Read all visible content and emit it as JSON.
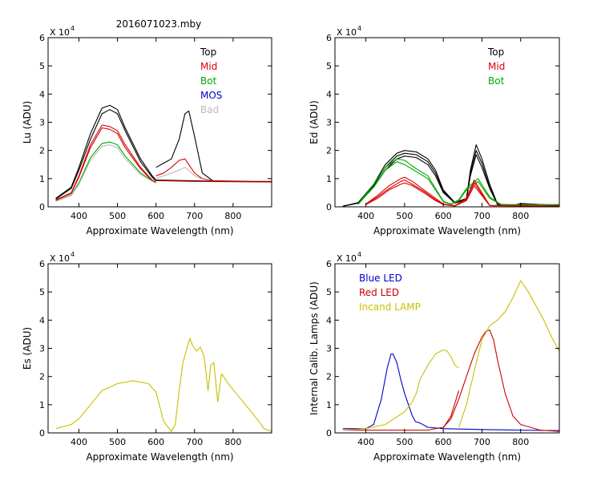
{
  "figure_title": "2016071023.mby",
  "chart_data": [
    {
      "type": "line",
      "xlabel": "Approximate Wavelength (nm)",
      "ylabel": "Lu (ADU)",
      "y_scale_label": "X 10",
      "y_scale_exp": "4",
      "xlim": [
        320,
        900
      ],
      "ylim": [
        0,
        60000
      ],
      "xticks": [
        400,
        500,
        600,
        700,
        800
      ],
      "yticks": [
        0,
        10000,
        20000,
        30000,
        40000,
        50000,
        60000
      ],
      "yticklabels": [
        "0",
        "1",
        "2",
        "3",
        "4",
        "5",
        "6"
      ],
      "legend_position": "top-right",
      "legend": [
        {
          "label": "Top",
          "color": "#000000"
        },
        {
          "label": "Mid",
          "color": "#dd0000"
        },
        {
          "label": "Bot",
          "color": "#00aa00"
        },
        {
          "label": "MOS",
          "color": "#0000cc"
        },
        {
          "label": "Bad",
          "color": "#bbbbbb"
        }
      ],
      "series": [
        {
          "color": "#000000",
          "x": [
            340,
            380,
            400,
            430,
            460,
            480,
            500,
            520,
            560,
            590,
            600
          ],
          "y": [
            3000,
            7000,
            14000,
            26000,
            35000,
            36000,
            34500,
            28000,
            17000,
            11000,
            9500
          ]
        },
        {
          "color": "#000000",
          "x": [
            340,
            380,
            400,
            430,
            460,
            480,
            500,
            520,
            560,
            590,
            600
          ],
          "y": [
            2800,
            6500,
            13000,
            24000,
            33000,
            34500,
            33000,
            27000,
            16000,
            10500,
            9200
          ]
        },
        {
          "color": "#dd0000",
          "x": [
            340,
            380,
            400,
            430,
            460,
            480,
            500,
            520,
            560,
            590,
            600
          ],
          "y": [
            2500,
            5000,
            11000,
            22000,
            29000,
            28500,
            27000,
            22000,
            14000,
            9500,
            8800
          ]
        },
        {
          "color": "#dd0000",
          "x": [
            340,
            380,
            400,
            430,
            460,
            480,
            500,
            520,
            560,
            590,
            600
          ],
          "y": [
            2300,
            4800,
            10500,
            21000,
            28000,
            27500,
            26000,
            21000,
            13500,
            9200,
            8600
          ]
        },
        {
          "color": "#00aa00",
          "x": [
            340,
            380,
            400,
            430,
            460,
            480,
            500,
            520,
            560,
            590,
            600
          ],
          "y": [
            2000,
            4200,
            8500,
            17500,
            22500,
            23000,
            22000,
            18000,
            12000,
            9200,
            8500
          ]
        },
        {
          "color": "#bbbbbb",
          "x": [
            340,
            380,
            400,
            430,
            460,
            480,
            500,
            520,
            560,
            590,
            600
          ],
          "y": [
            1900,
            4000,
            8000,
            16500,
            21500,
            22000,
            21000,
            17000,
            11500,
            9000,
            8400
          ]
        },
        {
          "color": "#000000",
          "x": [
            600,
            620,
            640,
            660,
            675,
            685,
            700,
            720,
            750,
            900
          ],
          "y": [
            14000,
            15500,
            17000,
            24000,
            33000,
            34000,
            25000,
            12000,
            9000,
            9000
          ]
        },
        {
          "color": "#dd0000",
          "x": [
            600,
            620,
            640,
            660,
            675,
            685,
            700,
            720,
            750,
            900
          ],
          "y": [
            11000,
            12000,
            14000,
            16500,
            17000,
            15000,
            12000,
            10000,
            9200,
            9000
          ]
        },
        {
          "color": "#bbbbbb",
          "x": [
            600,
            620,
            640,
            660,
            675,
            685,
            700,
            720,
            750,
            900
          ],
          "y": [
            10000,
            11000,
            12000,
            13000,
            14000,
            13000,
            11000,
            9800,
            9100,
            9000
          ]
        },
        {
          "color": "#000000",
          "x": [
            600,
            700,
            800,
            900
          ],
          "y": [
            9500,
            9200,
            9000,
            8900
          ]
        },
        {
          "color": "#dd0000",
          "x": [
            600,
            700,
            800,
            900
          ],
          "y": [
            9300,
            9000,
            8900,
            8800
          ]
        }
      ]
    },
    {
      "type": "line",
      "xlabel": "Approximate Wavelength (nm)",
      "ylabel": "Ed (ADU)",
      "y_scale_label": "X 10",
      "y_scale_exp": "4",
      "xlim": [
        320,
        900
      ],
      "ylim": [
        0,
        60000
      ],
      "xticks": [
        400,
        500,
        600,
        700,
        800
      ],
      "yticks": [
        0,
        10000,
        20000,
        30000,
        40000,
        50000,
        60000
      ],
      "yticklabels": [
        "0",
        "1",
        "2",
        "3",
        "4",
        "5",
        "6"
      ],
      "legend_position": "top-right",
      "legend": [
        {
          "label": "Top",
          "color": "#000000"
        },
        {
          "label": "Mid",
          "color": "#dd0000"
        },
        {
          "label": "Bot",
          "color": "#00aa00"
        }
      ],
      "series": [
        {
          "color": "#000000",
          "x": [
            340,
            380,
            420,
            450,
            480,
            500,
            530,
            560,
            580,
            600,
            630,
            660,
            670,
            685,
            700,
            720,
            740,
            780,
            800,
            900
          ],
          "y": [
            200,
            1500,
            8000,
            15000,
            19000,
            20000,
            19500,
            17000,
            13000,
            6000,
            1500,
            3000,
            13000,
            22000,
            17000,
            8000,
            1000,
            500,
            1200,
            500
          ]
        },
        {
          "color": "#000000",
          "x": [
            340,
            380,
            420,
            450,
            480,
            500,
            530,
            560,
            580,
            600,
            630,
            660,
            670,
            685,
            700,
            720,
            740,
            780,
            800,
            900
          ],
          "y": [
            200,
            1400,
            7500,
            14000,
            18000,
            19000,
            18500,
            16000,
            12000,
            5500,
            1400,
            2800,
            12000,
            20000,
            15500,
            7000,
            900,
            450,
            1100,
            450
          ]
        },
        {
          "color": "#000000",
          "x": [
            340,
            380,
            420,
            450,
            480,
            500,
            530,
            560,
            580,
            600,
            630,
            660,
            670,
            685,
            700,
            720,
            740,
            780,
            800,
            900
          ],
          "y": [
            200,
            1300,
            7000,
            13000,
            17000,
            18000,
            17500,
            15000,
            11000,
            5000,
            1300,
            2600,
            11000,
            18500,
            14000,
            6500,
            800,
            400,
            1000,
            400
          ]
        },
        {
          "color": "#00aa00",
          "x": [
            380,
            420,
            450,
            480,
            500,
            530,
            560,
            580,
            600,
            620,
            640,
            660,
            690,
            720,
            750,
            900
          ],
          "y": [
            1000,
            8000,
            14000,
            17000,
            16500,
            13500,
            11000,
            6500,
            2000,
            1000,
            2500,
            6500,
            10000,
            3500,
            800,
            800
          ]
        },
        {
          "color": "#00aa00",
          "x": [
            380,
            420,
            450,
            480,
            500,
            530,
            560,
            580,
            600,
            620,
            640,
            660,
            690,
            720,
            750,
            900
          ],
          "y": [
            900,
            7000,
            13000,
            16000,
            15000,
            12500,
            10000,
            6000,
            1800,
            900,
            2200,
            6000,
            9000,
            3000,
            700,
            700
          ]
        },
        {
          "color": "#dd0000",
          "x": [
            400,
            430,
            460,
            490,
            500,
            520,
            550,
            580,
            600,
            630,
            660,
            680,
            700,
            720,
            900
          ],
          "y": [
            1000,
            4000,
            7500,
            10000,
            10500,
            9000,
            6000,
            3000,
            1000,
            400,
            3000,
            9500,
            5000,
            500,
            300
          ]
        },
        {
          "color": "#dd0000",
          "x": [
            400,
            430,
            460,
            490,
            500,
            520,
            550,
            580,
            600,
            630,
            660,
            680,
            700,
            720,
            900
          ],
          "y": [
            900,
            3500,
            6500,
            9000,
            9500,
            8000,
            5500,
            2500,
            900,
            350,
            2600,
            8500,
            4500,
            450,
            250
          ]
        },
        {
          "color": "#dd0000",
          "x": [
            400,
            430,
            460,
            490,
            500,
            520,
            550,
            580,
            600,
            630,
            660,
            680,
            700,
            720,
            900
          ],
          "y": [
            800,
            3000,
            6000,
            8000,
            8500,
            7500,
            5000,
            2200,
            800,
            300,
            2200,
            7500,
            4000,
            400,
            200
          ]
        }
      ]
    },
    {
      "type": "line",
      "xlabel": "Approximate Wavelength (nm)",
      "ylabel": "Es (ADU)",
      "y_scale_label": "X 10",
      "y_scale_exp": "4",
      "xlim": [
        320,
        900
      ],
      "ylim": [
        0,
        60000
      ],
      "xticks": [
        400,
        500,
        600,
        700,
        800
      ],
      "yticks": [
        0,
        10000,
        20000,
        30000,
        40000,
        50000,
        60000
      ],
      "yticklabels": [
        "0",
        "1",
        "2",
        "3",
        "4",
        "5",
        "6"
      ],
      "series": [
        {
          "color": "#c8c000",
          "x": [
            340,
            380,
            400,
            430,
            460,
            500,
            540,
            580,
            600,
            620,
            640,
            650,
            660,
            670,
            680,
            688,
            695,
            705,
            715,
            725,
            735,
            742,
            750,
            760,
            770,
            790,
            820,
            850,
            870,
            880,
            900
          ],
          "y": [
            1500,
            3000,
            5000,
            10000,
            15000,
            17500,
            18500,
            17500,
            14500,
            4000,
            500,
            3000,
            15000,
            25000,
            30000,
            33500,
            31000,
            29000,
            30500,
            27000,
            15000,
            24000,
            25000,
            11000,
            21000,
            17000,
            12000,
            7000,
            3500,
            1500,
            500
          ]
        }
      ]
    },
    {
      "type": "line",
      "xlabel": "Approximate Wavelength (nm)",
      "ylabel": "Internal Calib. Lamps (ADU)",
      "y_scale_label": "X 10",
      "y_scale_exp": "4",
      "xlim": [
        320,
        900
      ],
      "ylim": [
        0,
        60000
      ],
      "xticks": [
        400,
        500,
        600,
        700,
        800
      ],
      "yticks": [
        0,
        10000,
        20000,
        30000,
        40000,
        50000,
        60000
      ],
      "yticklabels": [
        "0",
        "1",
        "2",
        "3",
        "4",
        "5",
        "6"
      ],
      "legend_position": "top-left",
      "legend": [
        {
          "label": "Blue LED",
          "color": "#0000cc"
        },
        {
          "label": "Red LED",
          "color": "#cc0000"
        },
        {
          "label": "Incand LAMP",
          "color": "#c8c000"
        }
      ],
      "series": [
        {
          "color": "#0000cc",
          "x": [
            340,
            400,
            420,
            440,
            455,
            465,
            470,
            480,
            490,
            500,
            510,
            520,
            528,
            540,
            560,
            600,
            700,
            800,
            900
          ],
          "y": [
            1500,
            1500,
            3000,
            12000,
            23000,
            28000,
            28000,
            25000,
            19000,
            14000,
            10000,
            6000,
            4000,
            3500,
            2000,
            1500,
            1200,
            1000,
            800
          ]
        },
        {
          "color": "#cc0000",
          "x": [
            340,
            560,
            600,
            620,
            640,
            660,
            680,
            700,
            710,
            720,
            730,
            740,
            760,
            780,
            800,
            850,
            900
          ],
          "y": [
            1000,
            1000,
            2000,
            5000,
            12000,
            20000,
            28000,
            34000,
            36000,
            36500,
            33000,
            26000,
            14000,
            6000,
            3000,
            1000,
            500
          ]
        },
        {
          "color": "#cc0000",
          "x": [
            600,
            620,
            640
          ],
          "y": [
            1800,
            6000,
            15000
          ]
        },
        {
          "color": "#c8c000",
          "x": [
            340,
            400,
            450,
            500,
            520,
            530,
            540,
            560,
            580,
            600,
            610,
            620,
            630,
            640
          ],
          "y": [
            1000,
            1500,
            3000,
            7500,
            11000,
            14000,
            19000,
            24000,
            28000,
            29500,
            29000,
            27000,
            24000,
            23000
          ]
        },
        {
          "color": "#c8c000",
          "x": [
            640,
            660,
            680,
            700,
            720,
            740,
            760,
            780,
            800,
            820,
            840,
            860,
            880,
            900
          ],
          "y": [
            2000,
            10000,
            22000,
            33000,
            38000,
            40000,
            43000,
            48000,
            54000,
            50000,
            45000,
            40000,
            34000,
            29000
          ]
        }
      ]
    }
  ]
}
